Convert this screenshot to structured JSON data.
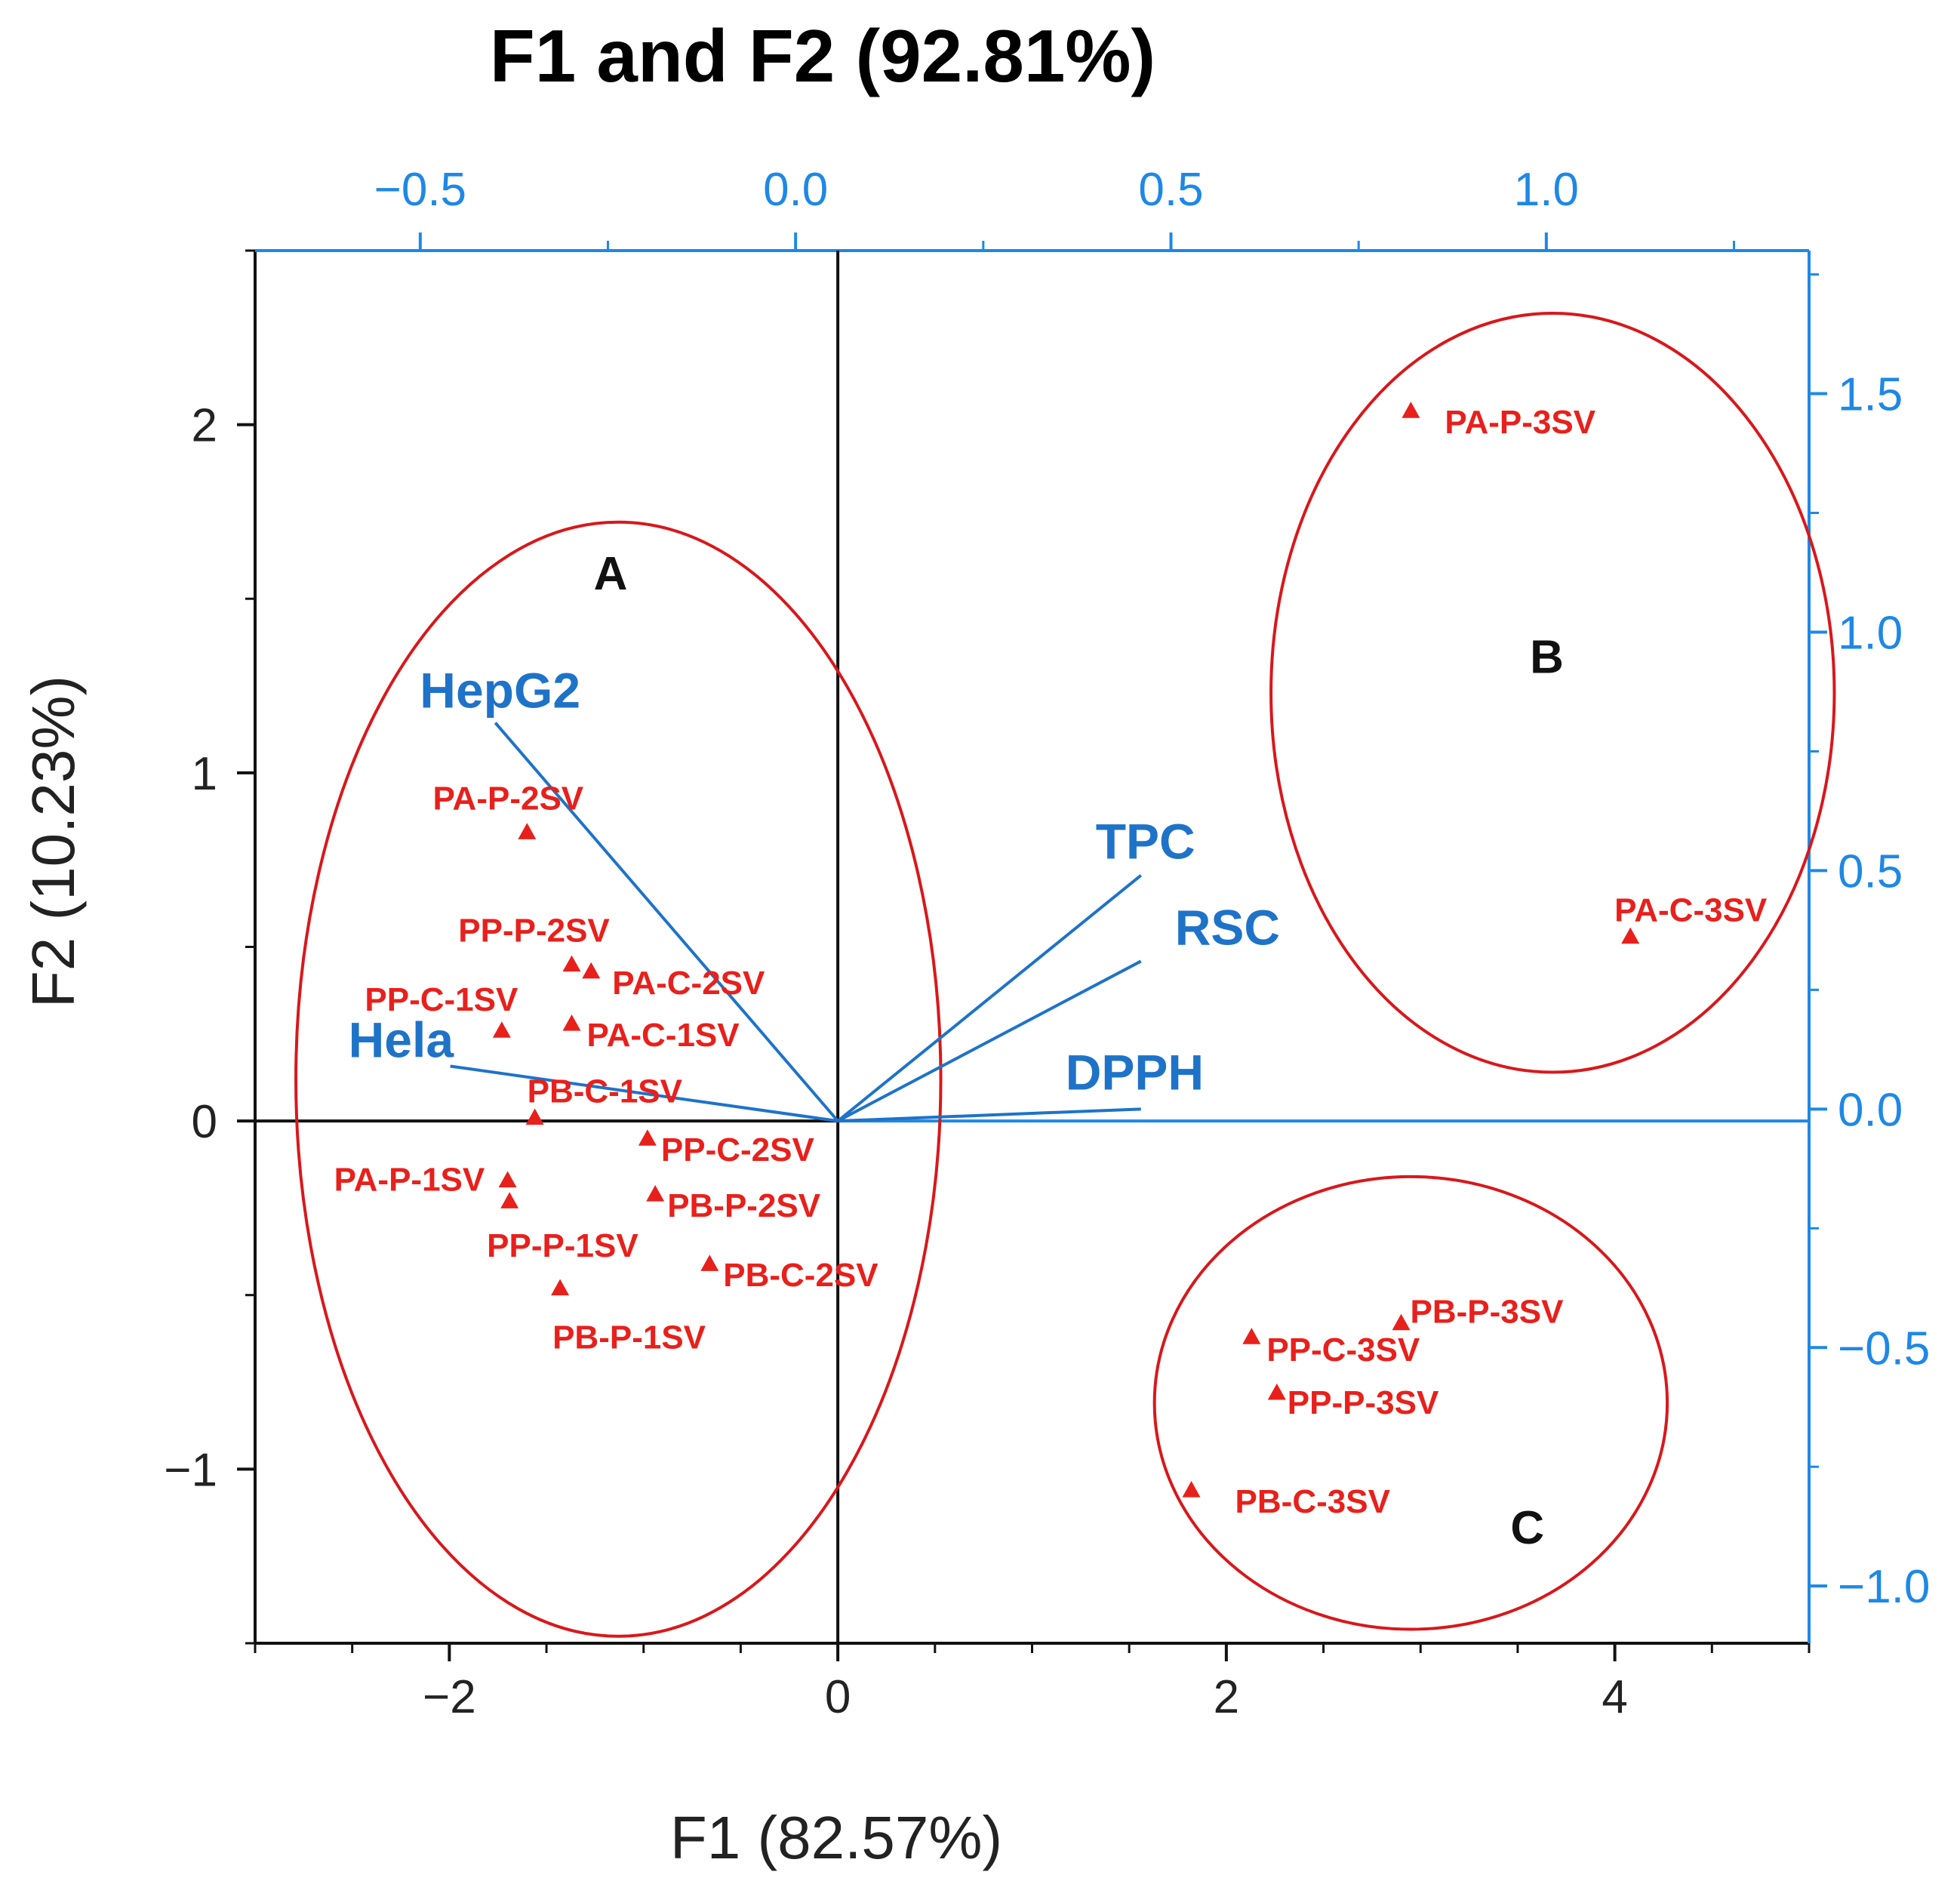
{
  "chart_data": {
    "type": "scatter",
    "title": "F1 and F2 (92.81%)",
    "xlabel": "F1  (82.57%)",
    "ylabel": "F2  (10.23%)",
    "xlim": [
      -3.0,
      5.0
    ],
    "ylim": [
      -1.5,
      2.5
    ],
    "x_ticks": [
      "−2",
      "0",
      "2",
      "4"
    ],
    "y_ticks": [
      "−1",
      "0",
      "1",
      "2"
    ],
    "top_axis": {
      "range": [
        -0.72,
        1.35
      ],
      "ticks": [
        "−0.5",
        "0.0",
        "0.5",
        "1.0"
      ]
    },
    "right_axis": {
      "range": [
        -1.12,
        1.8
      ],
      "ticks": [
        "−1.0",
        "−0.5",
        "0.0",
        "0.5",
        "1.0",
        "1.5"
      ]
    },
    "points": [
      {
        "label": "PA-P-3SV",
        "x": 2.95,
        "y": 2.04
      },
      {
        "label": "PA-C-3SV",
        "x": 4.08,
        "y": 0.53
      },
      {
        "label": "PA-P-2SV",
        "x": -1.6,
        "y": 0.83
      },
      {
        "label": "PP-P-2SV",
        "x": -1.37,
        "y": 0.45
      },
      {
        "label": "PA-C-2SV",
        "x": -1.27,
        "y": 0.43
      },
      {
        "label": "PP-C-1SV",
        "x": -1.73,
        "y": 0.26
      },
      {
        "label": "PA-C-1SV",
        "x": -1.37,
        "y": 0.28
      },
      {
        "label": "PB-C-1SV",
        "x": -1.56,
        "y": 0.01
      },
      {
        "label": "PP-C-2SV",
        "x": -0.98,
        "y": -0.05
      },
      {
        "label": "PA-P-1SV",
        "x": -1.7,
        "y": -0.17
      },
      {
        "label": "PP-P-1SV",
        "x": -1.69,
        "y": -0.23
      },
      {
        "label": "PB-P-2SV",
        "x": -0.94,
        "y": -0.21
      },
      {
        "label": "PB-C-2SV",
        "x": -0.66,
        "y": -0.41
      },
      {
        "label": "PB-P-1SV",
        "x": -1.43,
        "y": -0.48
      },
      {
        "label": "PB-P-3SV",
        "x": 2.9,
        "y": -0.58
      },
      {
        "label": "PP-C-3SV",
        "x": 2.13,
        "y": -0.62
      },
      {
        "label": "PP-P-3SV",
        "x": 2.26,
        "y": -0.78
      },
      {
        "label": "PB-C-3SV",
        "x": 1.82,
        "y": -1.06
      }
    ],
    "vectors": [
      {
        "label": "HepG2",
        "x": -0.4,
        "y": 0.81
      },
      {
        "label": "Hela",
        "x": -0.46,
        "y": 0.09
      },
      {
        "label": "TPC",
        "x": 0.46,
        "y": 0.49
      },
      {
        "label": "RSC",
        "x": 0.46,
        "y": 0.31
      },
      {
        "label": "DPPH",
        "x": 0.46,
        "y": 0.0
      }
    ],
    "groups": [
      {
        "label": "A",
        "center": [
          -1.13,
          0.12
        ],
        "rx": 1.66,
        "ry": 1.6
      },
      {
        "label": "B",
        "center": [
          3.68,
          1.23
        ],
        "rx": 1.45,
        "ry": 1.09
      },
      {
        "label": "C",
        "center": [
          2.95,
          -0.81
        ],
        "rx": 1.32,
        "ry": 0.65
      }
    ],
    "colors": {
      "points": "#e8201c",
      "vectors": "#1e73c8",
      "top_right_axes": "#1e88e5",
      "ellipse": "#d8181c"
    }
  }
}
